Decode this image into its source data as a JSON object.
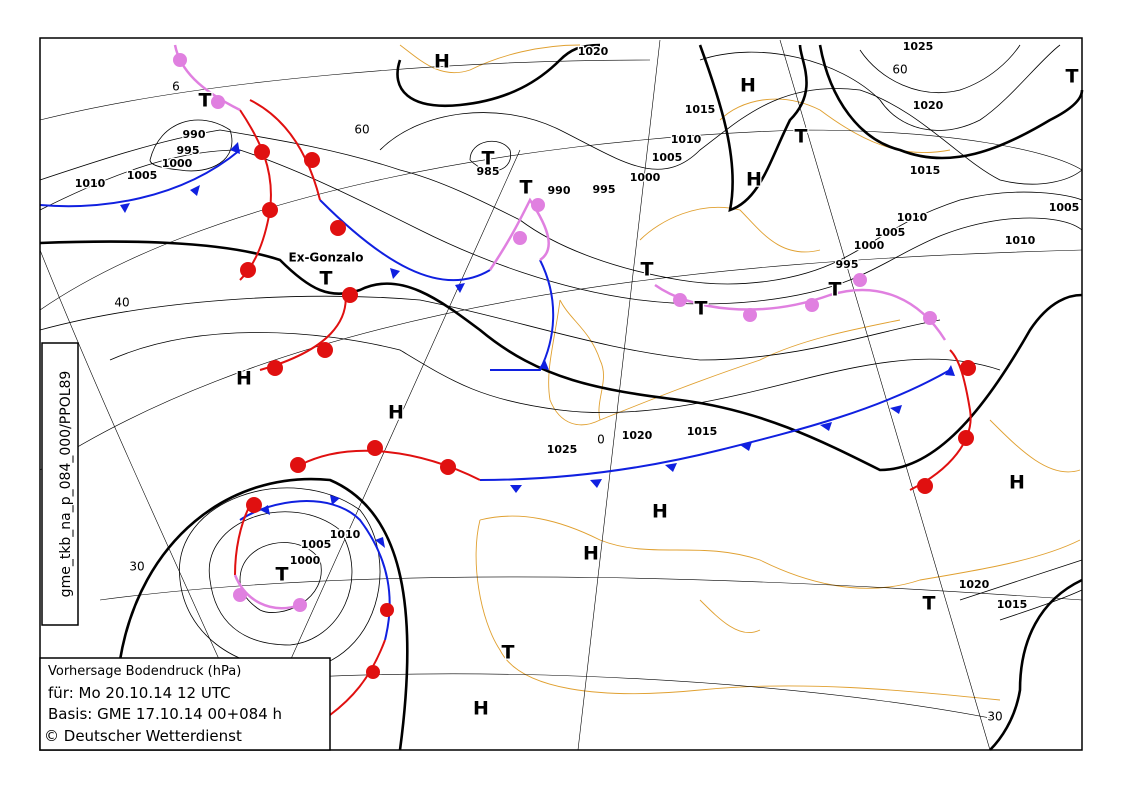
{
  "map": {
    "side_label": "gme_tkb_na_p_084_000/PPOL89",
    "named_system": "Ex-Gonzalo",
    "legend": [
      "Vorhersage Bodendruck (hPa)",
      "für:  Mo 20.10.14  12 UTC",
      "Basis: GME  17.10.14 00+084 h",
      "© Deutscher Wetterdienst"
    ],
    "highs": [
      "H",
      "H",
      "H",
      "H",
      "H",
      "H",
      "H",
      "H",
      "H"
    ],
    "lows": [
      "T",
      "T",
      "T",
      "T",
      "T",
      "T",
      "T",
      "T",
      "T",
      "T",
      "T",
      "T"
    ],
    "isobar_labels": [
      1020,
      1025,
      1020,
      1015,
      1010,
      1005,
      1000,
      995,
      990,
      985,
      990,
      995,
      1000,
      1005,
      1010,
      1015,
      1010,
      1005,
      1000,
      995,
      1005,
      1010,
      1025,
      1020,
      1015,
      1010,
      1005,
      1000,
      1020,
      1015
    ],
    "grid_labels": [
      "60",
      "60",
      "6",
      "40",
      "30",
      "30",
      "0"
    ]
  }
}
